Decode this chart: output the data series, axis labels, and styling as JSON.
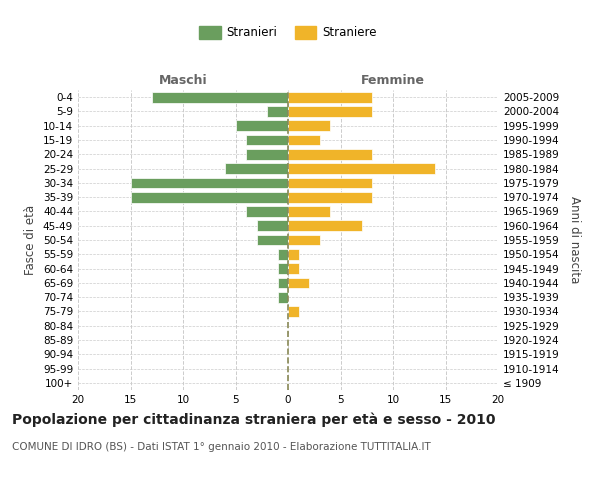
{
  "age_groups": [
    "100+",
    "95-99",
    "90-94",
    "85-89",
    "80-84",
    "75-79",
    "70-74",
    "65-69",
    "60-64",
    "55-59",
    "50-54",
    "45-49",
    "40-44",
    "35-39",
    "30-34",
    "25-29",
    "20-24",
    "15-19",
    "10-14",
    "5-9",
    "0-4"
  ],
  "birth_years": [
    "≤ 1909",
    "1910-1914",
    "1915-1919",
    "1920-1924",
    "1925-1929",
    "1930-1934",
    "1935-1939",
    "1940-1944",
    "1945-1949",
    "1950-1954",
    "1955-1959",
    "1960-1964",
    "1965-1969",
    "1970-1974",
    "1975-1979",
    "1980-1984",
    "1985-1989",
    "1990-1994",
    "1995-1999",
    "2000-2004",
    "2005-2009"
  ],
  "males": [
    0,
    0,
    0,
    0,
    0,
    0,
    1,
    1,
    1,
    1,
    3,
    3,
    4,
    15,
    15,
    6,
    4,
    4,
    5,
    2,
    13
  ],
  "females": [
    0,
    0,
    0,
    0,
    0,
    1,
    0,
    2,
    1,
    1,
    3,
    7,
    4,
    8,
    8,
    14,
    8,
    3,
    4,
    8,
    8
  ],
  "male_color": "#6a9e5e",
  "female_color": "#f0b429",
  "center_line_color": "#888855",
  "grid_color": "#cccccc",
  "background_color": "#ffffff",
  "bar_edge_color": "#ffffff",
  "title": "Popolazione per cittadinanza straniera per età e sesso - 2010",
  "subtitle": "COMUNE DI IDRO (BS) - Dati ISTAT 1° gennaio 2010 - Elaborazione TUTTITALIA.IT",
  "left_header": "Maschi",
  "right_header": "Femmine",
  "ylabel_left": "Fasce di età",
  "ylabel_right": "Anni di nascita",
  "xlabel_range": [
    -20,
    20
  ],
  "xticks": [
    -20,
    -15,
    -10,
    -5,
    0,
    5,
    10,
    15,
    20
  ],
  "legend_stranieri": "Stranieri",
  "legend_straniere": "Straniere",
  "title_fontsize": 10,
  "subtitle_fontsize": 7.5,
  "tick_fontsize": 7.5,
  "label_fontsize": 8.5,
  "header_fontsize": 9
}
